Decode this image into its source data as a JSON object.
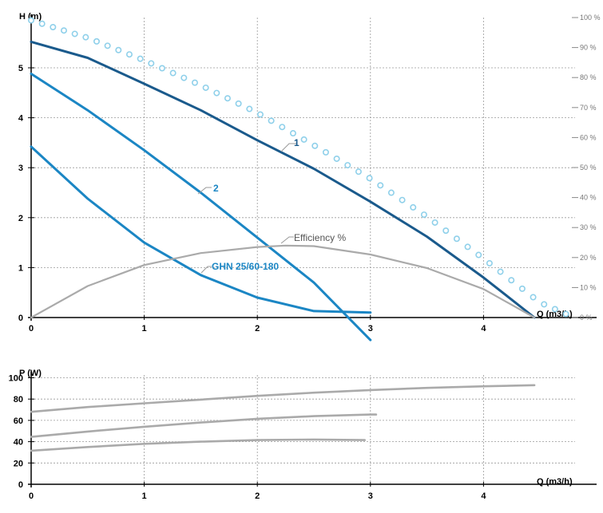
{
  "chart_data": [
    {
      "type": "line",
      "ylabel": "H (m)",
      "xlabel": "Q (m3/h)",
      "xlim": [
        0,
        5
      ],
      "ylim": [
        0,
        6
      ],
      "x_ticks": [
        "0",
        "1",
        "2",
        "3",
        "4"
      ],
      "y_ticks": [
        "0",
        "1",
        "2",
        "3",
        "4",
        "5"
      ],
      "y2_ticks": [
        "0 %",
        "10 %",
        "20 %",
        "30 %",
        "40 %",
        "50 %",
        "60 %",
        "70 %",
        "80 %",
        "90 %",
        "100 %"
      ],
      "y2lim": [
        0,
        100
      ],
      "grid": true,
      "series": [
        {
          "name": "1",
          "color": "#1a5a8c",
          "style": "solid",
          "points": [
            [
              0,
              5.52
            ],
            [
              0.5,
              5.2
            ],
            [
              1,
              4.68
            ],
            [
              1.5,
              4.15
            ],
            [
              2,
              3.55
            ],
            [
              2.5,
              2.98
            ],
            [
              3,
              2.32
            ],
            [
              3.5,
              1.62
            ],
            [
              4,
              0.8
            ],
            [
              4.45,
              0
            ]
          ]
        },
        {
          "name": "2",
          "color": "#1b86c4",
          "style": "solid",
          "points": [
            [
              0,
              4.88
            ],
            [
              0.5,
              4.15
            ],
            [
              1,
              3.35
            ],
            [
              1.5,
              2.5
            ],
            [
              2,
              1.6
            ],
            [
              2.5,
              0.7
            ],
            [
              3,
              -0.45
            ]
          ]
        },
        {
          "name": "GHN 25/60-180",
          "color": "#1b86c4",
          "style": "solid",
          "points": [
            [
              0,
              3.42
            ],
            [
              0.5,
              2.38
            ],
            [
              1,
              1.5
            ],
            [
              1.5,
              0.85
            ],
            [
              2,
              0.4
            ],
            [
              2.5,
              0.13
            ],
            [
              3,
              0.1
            ]
          ]
        },
        {
          "name": "Efficiency %",
          "color": "#aaaaaa",
          "style": "solid",
          "axis": "y2",
          "points": [
            [
              0,
              0
            ],
            [
              0.5,
              10.5
            ],
            [
              1,
              17.5
            ],
            [
              1.5,
              21.5
            ],
            [
              2,
              23.5
            ],
            [
              2.25,
              24
            ],
            [
              2.5,
              23.8
            ],
            [
              3,
              21
            ],
            [
              3.5,
              16.5
            ],
            [
              4,
              9.5
            ],
            [
              4.45,
              0
            ]
          ]
        },
        {
          "name": "",
          "color": "#8fd0ea",
          "style": "dots",
          "points": [
            [
              0,
              5.95
            ],
            [
              0.5,
              5.6
            ],
            [
              1,
              5.15
            ],
            [
              1.5,
              4.65
            ],
            [
              2,
              4.1
            ],
            [
              2.5,
              3.45
            ],
            [
              3,
              2.78
            ],
            [
              3.5,
              2.02
            ],
            [
              4,
              1.18
            ],
            [
              4.5,
              0.3
            ],
            [
              4.8,
              0
            ]
          ]
        }
      ],
      "annotations": [
        {
          "text": "1",
          "at_series": "1"
        },
        {
          "text": "2",
          "at_series": "2"
        },
        {
          "text": "GHN 25/60-180",
          "at_series": "GHN 25/60-180"
        },
        {
          "text": "Efficiency %",
          "at_series": "Efficiency %"
        }
      ]
    },
    {
      "type": "line",
      "ylabel": "P (W)",
      "xlabel": "Q (m3/h)",
      "xlim": [
        0,
        5
      ],
      "ylim": [
        0,
        100
      ],
      "x_ticks": [
        "0",
        "1",
        "2",
        "3",
        "4"
      ],
      "y_ticks": [
        "0",
        "20",
        "40",
        "60",
        "80",
        "100"
      ],
      "grid": true,
      "series": [
        {
          "name": "",
          "color": "#aaaaaa",
          "points": [
            [
              0,
              68
            ],
            [
              0.5,
              72.5
            ],
            [
              1,
              76
            ],
            [
              1.5,
              79.5
            ],
            [
              2,
              83
            ],
            [
              2.5,
              86
            ],
            [
              3,
              88.5
            ],
            [
              3.5,
              90.5
            ],
            [
              4,
              92
            ],
            [
              4.45,
              93
            ]
          ]
        },
        {
          "name": "",
          "color": "#aaaaaa",
          "points": [
            [
              0,
              44.5
            ],
            [
              0.5,
              49.5
            ],
            [
              1,
              54
            ],
            [
              1.5,
              58
            ],
            [
              2,
              61.5
            ],
            [
              2.5,
              64
            ],
            [
              3,
              65.5
            ],
            [
              3.05,
              65.5
            ]
          ]
        },
        {
          "name": "",
          "color": "#aaaaaa",
          "points": [
            [
              0,
              31.5
            ],
            [
              0.5,
              35
            ],
            [
              1,
              38
            ],
            [
              1.5,
              40
            ],
            [
              2,
              41.5
            ],
            [
              2.5,
              42
            ],
            [
              2.95,
              41.5
            ]
          ]
        }
      ]
    }
  ]
}
